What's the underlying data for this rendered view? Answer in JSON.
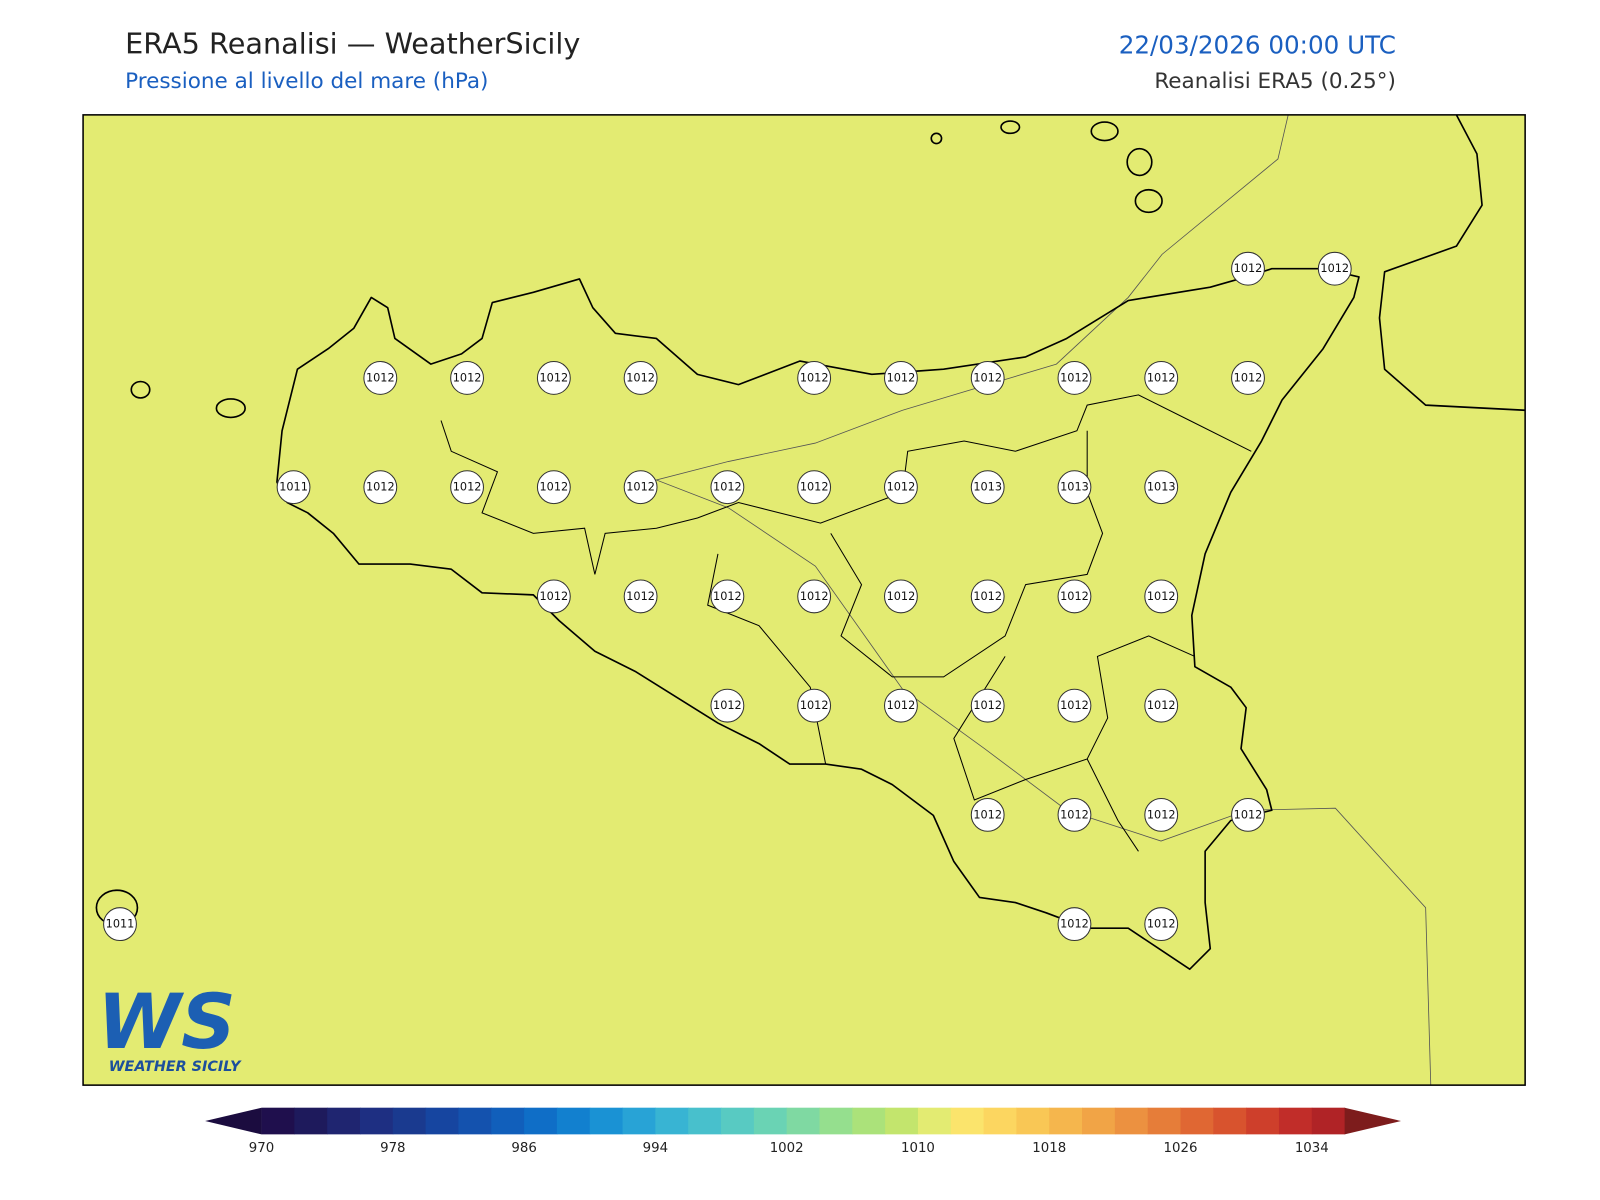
{
  "header": {
    "title": "ERA5 Reanalisi — WeatherSicily",
    "subtitle": "Pressione al livello del mare (hPa)",
    "datetime": "22/03/2026 00:00 UTC",
    "source": "Reanalisi ERA5 (0.25°)"
  },
  "stations": [
    1012,
    1012,
    1012,
    1012,
    1012,
    1012,
    1012,
    1012,
    1012,
    1012,
    1012,
    1012,
    1011,
    1012,
    1012,
    1012,
    1012,
    1012,
    1012,
    1012,
    1013,
    1013,
    1013,
    1012,
    1012,
    1012,
    1012,
    1012,
    1012,
    1012,
    1012,
    1012,
    1012,
    1012,
    1012,
    1012,
    1012,
    1012,
    1012,
    1012,
    1012,
    1011,
    1012,
    1012
  ],
  "colorbar": {
    "ticks": [
      970,
      978,
      986,
      994,
      1002,
      1010,
      1018,
      1026,
      1034
    ],
    "colors": [
      "#1f0f4d",
      "#1e1a5c",
      "#1f2570",
      "#1e2f82",
      "#1a3a8f",
      "#1645a0",
      "#1452ae",
      "#115fbb",
      "#0f6ec7",
      "#1280cf",
      "#1a92d4",
      "#28a3d6",
      "#38b4d3",
      "#48c0cc",
      "#58cac2",
      "#6ad3b4",
      "#7fd9a2",
      "#95df8e",
      "#abe27a",
      "#c3e56d",
      "#e3eb72",
      "#fbe46c",
      "#fcd660",
      "#f9c755",
      "#f5b64d",
      "#f1a446",
      "#ec9140",
      "#e67d39",
      "#e06733",
      "#d8532e",
      "#ce3f2b",
      "#c12d29",
      "#b02326"
    ],
    "under": "#1b0c3f",
    "over": "#7d1c1c"
  },
  "logo": {
    "mark": "WS",
    "name": "WEATHER SICILY"
  }
}
